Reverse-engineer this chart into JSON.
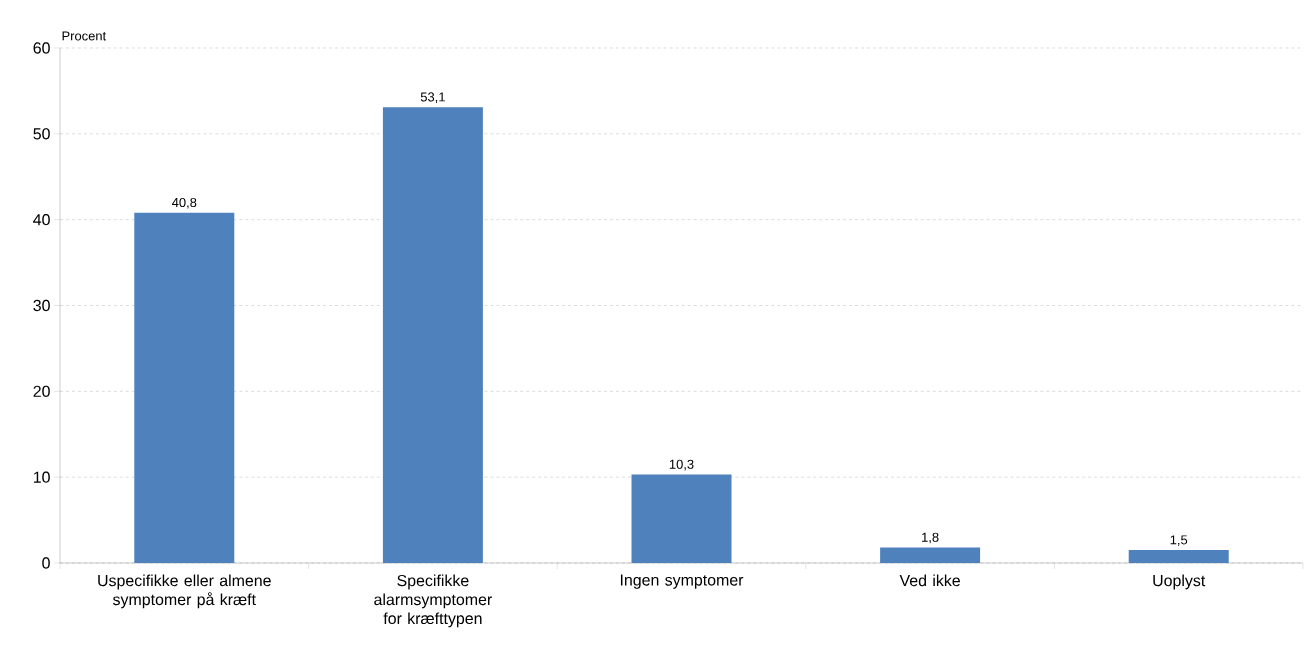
{
  "chart_data": {
    "type": "bar",
    "ylabel": "Procent",
    "categories": [
      "Uspecifikke eller almene symptomer på kræft",
      "Specifikke alarmsymptomer for kræfttypen",
      "Ingen symptomer",
      "Ved ikke",
      "Uoplyst"
    ],
    "values": [
      40.8,
      53.1,
      10.3,
      1.8,
      1.5
    ],
    "value_labels": [
      "40,8",
      "53,1",
      "10,3",
      "1,8",
      "1,5"
    ],
    "color": "#4f81bd",
    "ylim": [
      0,
      60
    ],
    "yticks": [
      0,
      10,
      20,
      30,
      40,
      50,
      60
    ],
    "grid": "y"
  }
}
